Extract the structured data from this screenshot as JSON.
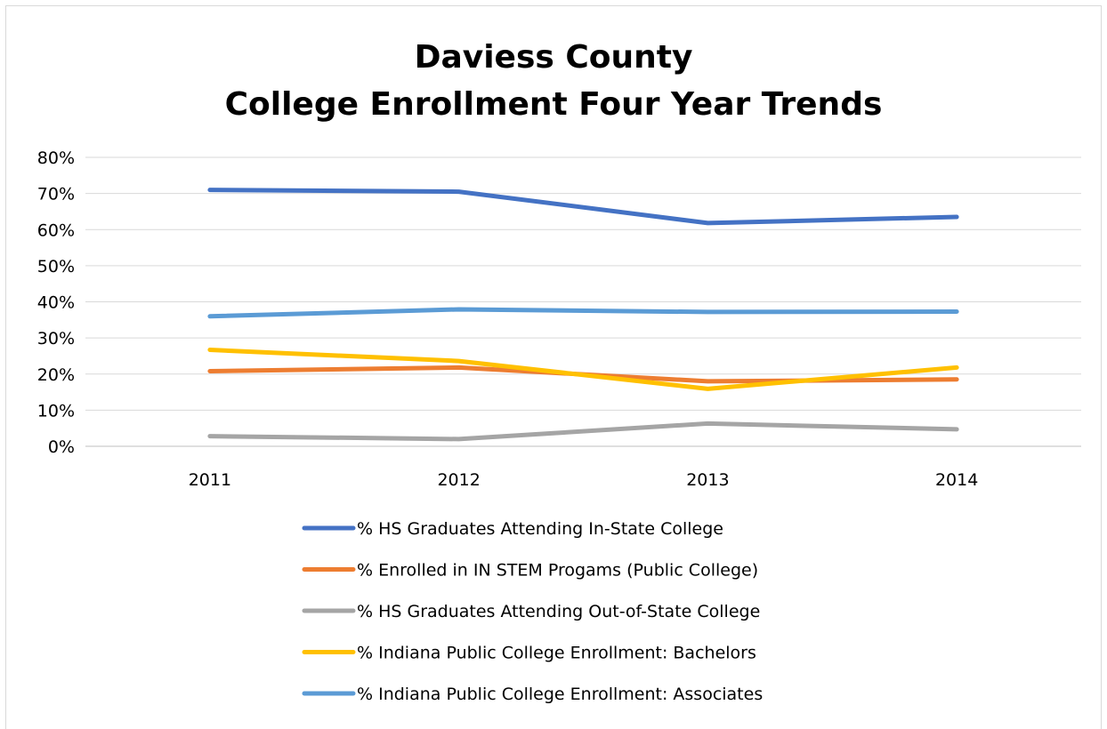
{
  "chart_data": {
    "type": "line",
    "title": [
      "Daviess County",
      "College Enrollment Four Year Trends"
    ],
    "xlabel": "",
    "ylabel": "",
    "categories": [
      "2011",
      "2012",
      "2013",
      "2014"
    ],
    "ylim": [
      0,
      80
    ],
    "yticks": [
      0,
      10,
      20,
      30,
      40,
      50,
      60,
      70,
      80
    ],
    "ytick_labels": [
      "0%",
      "10%",
      "20%",
      "30%",
      "40%",
      "50%",
      "60%",
      "70%",
      "80%"
    ],
    "grid": true,
    "legend_position": "bottom",
    "series": [
      {
        "name": "% HS Graduates Attending In-State College",
        "color": "#4472C4",
        "values": [
          71.0,
          70.5,
          61.8,
          63.5
        ]
      },
      {
        "name": "% Enrolled in IN STEM Progams (Public College)",
        "color": "#ED7D31",
        "values": [
          20.8,
          21.8,
          18.0,
          18.5
        ]
      },
      {
        "name": "% HS Graduates Attending Out-of-State College",
        "color": "#A5A5A5",
        "values": [
          2.8,
          2.0,
          6.3,
          4.7
        ]
      },
      {
        "name": "% Indiana Public College Enrollment: Bachelors",
        "color": "#FFC000",
        "values": [
          26.7,
          23.6,
          15.9,
          21.8
        ]
      },
      {
        "name": "% Indiana Public College Enrollment: Associates",
        "color": "#5B9BD5",
        "values": [
          36.0,
          37.9,
          37.2,
          37.3
        ]
      }
    ]
  }
}
